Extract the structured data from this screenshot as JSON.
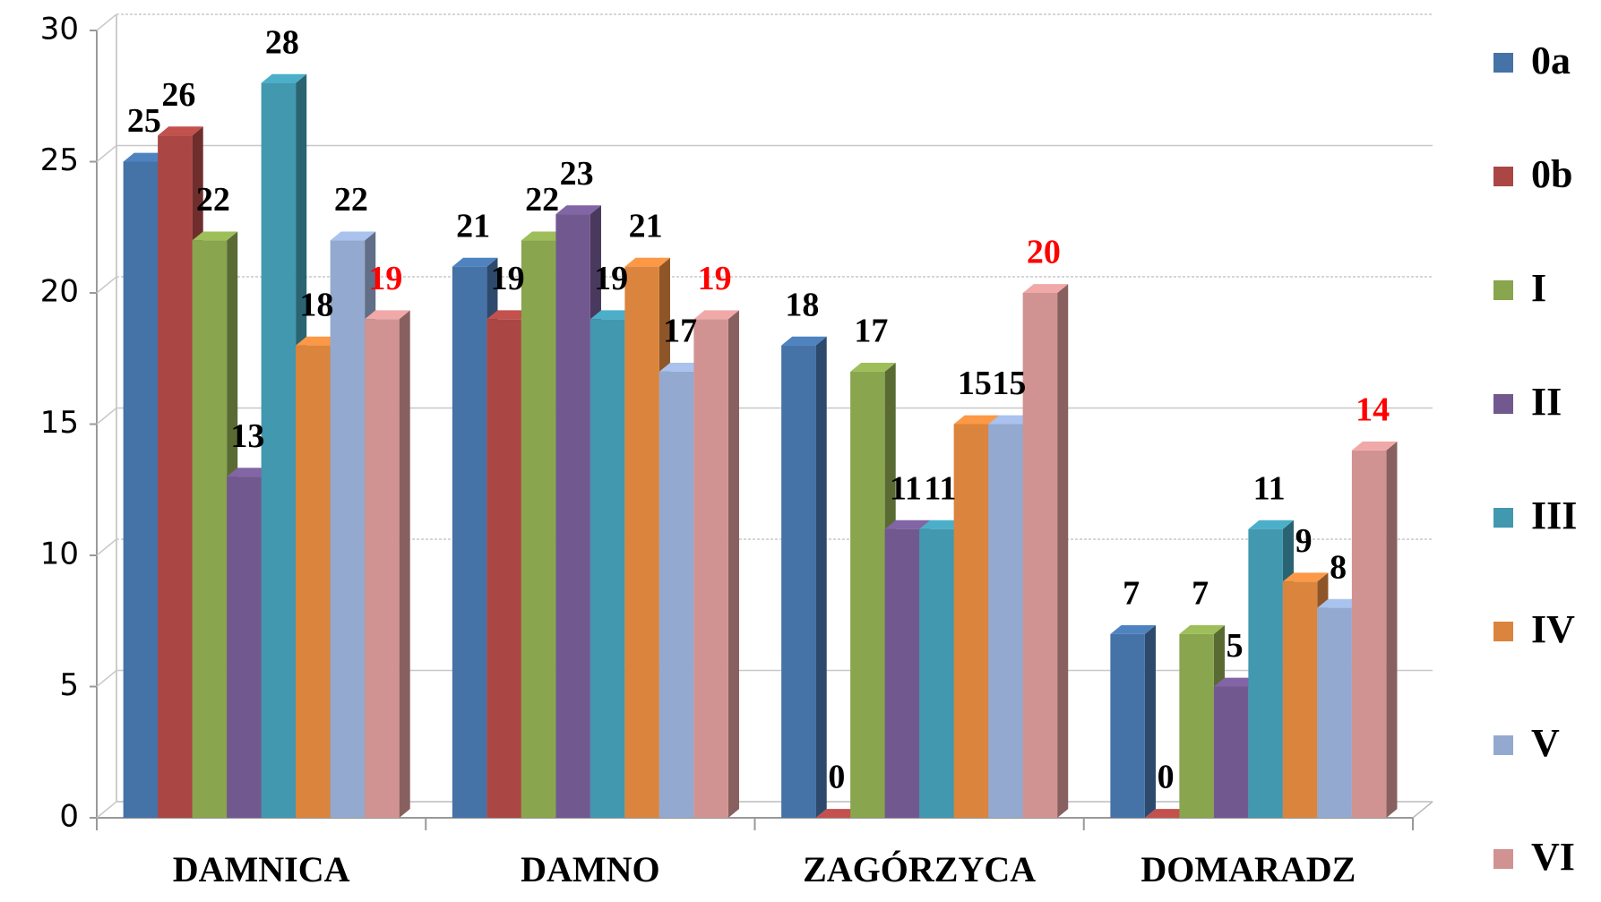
{
  "chart_data": {
    "type": "bar3d",
    "categories": [
      "DAMNICA",
      "DAMNO",
      "ZAGÓRZYCA",
      "DOMARADZ"
    ],
    "series": [
      {
        "name": "0a",
        "color": "#4572a7",
        "label_color": "#000000",
        "values": [
          25,
          21,
          18,
          7
        ]
      },
      {
        "name": "0b",
        "color": "#aa4643",
        "label_color": "#000000",
        "values": [
          26,
          19,
          0,
          0
        ]
      },
      {
        "name": "I",
        "color": "#89a54e",
        "label_color": "#000000",
        "values": [
          22,
          22,
          17,
          7
        ]
      },
      {
        "name": "II",
        "color": "#71588f",
        "label_color": "#000000",
        "values": [
          13,
          23,
          11,
          5
        ]
      },
      {
        "name": "III",
        "color": "#4198af",
        "label_color": "#000000",
        "values": [
          28,
          19,
          11,
          11
        ]
      },
      {
        "name": "IV",
        "color": "#db843d",
        "label_color": "#000000",
        "values": [
          18,
          21,
          15,
          9
        ]
      },
      {
        "name": "V",
        "color": "#93a9cf",
        "label_color": "#000000",
        "values": [
          22,
          17,
          15,
          8
        ]
      },
      {
        "name": "VI",
        "color": "#d19392",
        "label_color": "#ff0000",
        "values": [
          19,
          19,
          20,
          14
        ]
      }
    ],
    "ylim": [
      0,
      30
    ],
    "yticks": [
      0,
      5,
      10,
      15,
      20,
      25,
      30
    ],
    "grid": true,
    "legend": "right"
  }
}
